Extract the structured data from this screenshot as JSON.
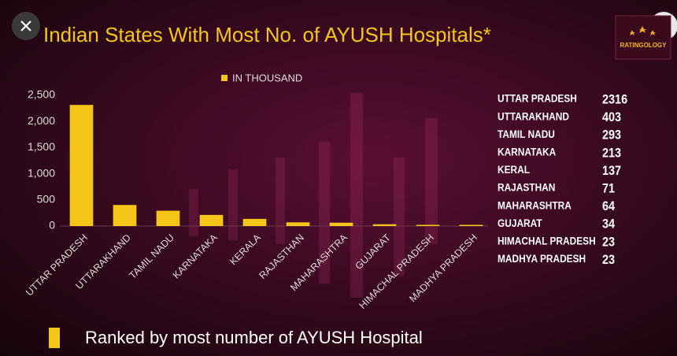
{
  "chart_data": {
    "type": "bar",
    "title": "Indian States With Most No. of AYUSH Hospitals*",
    "legend_label": "IN THOUSAND",
    "categories": [
      "UTTAR PRADESH",
      "UTTARAKHAND",
      "TAMIL NADU",
      "KARNATAKA",
      "KERALA",
      "RAJASTHAN",
      "MAHARASHTRA",
      "GUJARAT",
      "HIMACHAL PRADESH",
      "MADHYA PRADESH"
    ],
    "values": [
      2316,
      403,
      293,
      213,
      137,
      71,
      64,
      34,
      23,
      23
    ],
    "color": "#f5c518",
    "ylim": [
      0,
      2500
    ],
    "yticks": [
      0,
      500,
      {
        "value": 1000,
        "label": "1,000"
      },
      {
        "value": 1500,
        "label": "1,500"
      },
      {
        "value": 2000,
        "label": "2,000"
      },
      {
        "value": 2500,
        "label": "2,500"
      }
    ],
    "grid": false
  },
  "ranking": {
    "names": [
      "UTTAR PRADESH",
      "UTTARAKHAND",
      "TAMIL NADU",
      "KARNATAKA",
      "KERAL",
      "RAJASTHAN",
      "MAHARASHTRA",
      "GUJARAT",
      "HIMACHAL PRADESH",
      "MADHYA PRADESH"
    ]
  },
  "footer": "Ranked by most number of AYUSH Hospital",
  "logo": "RATINGOLOGY"
}
